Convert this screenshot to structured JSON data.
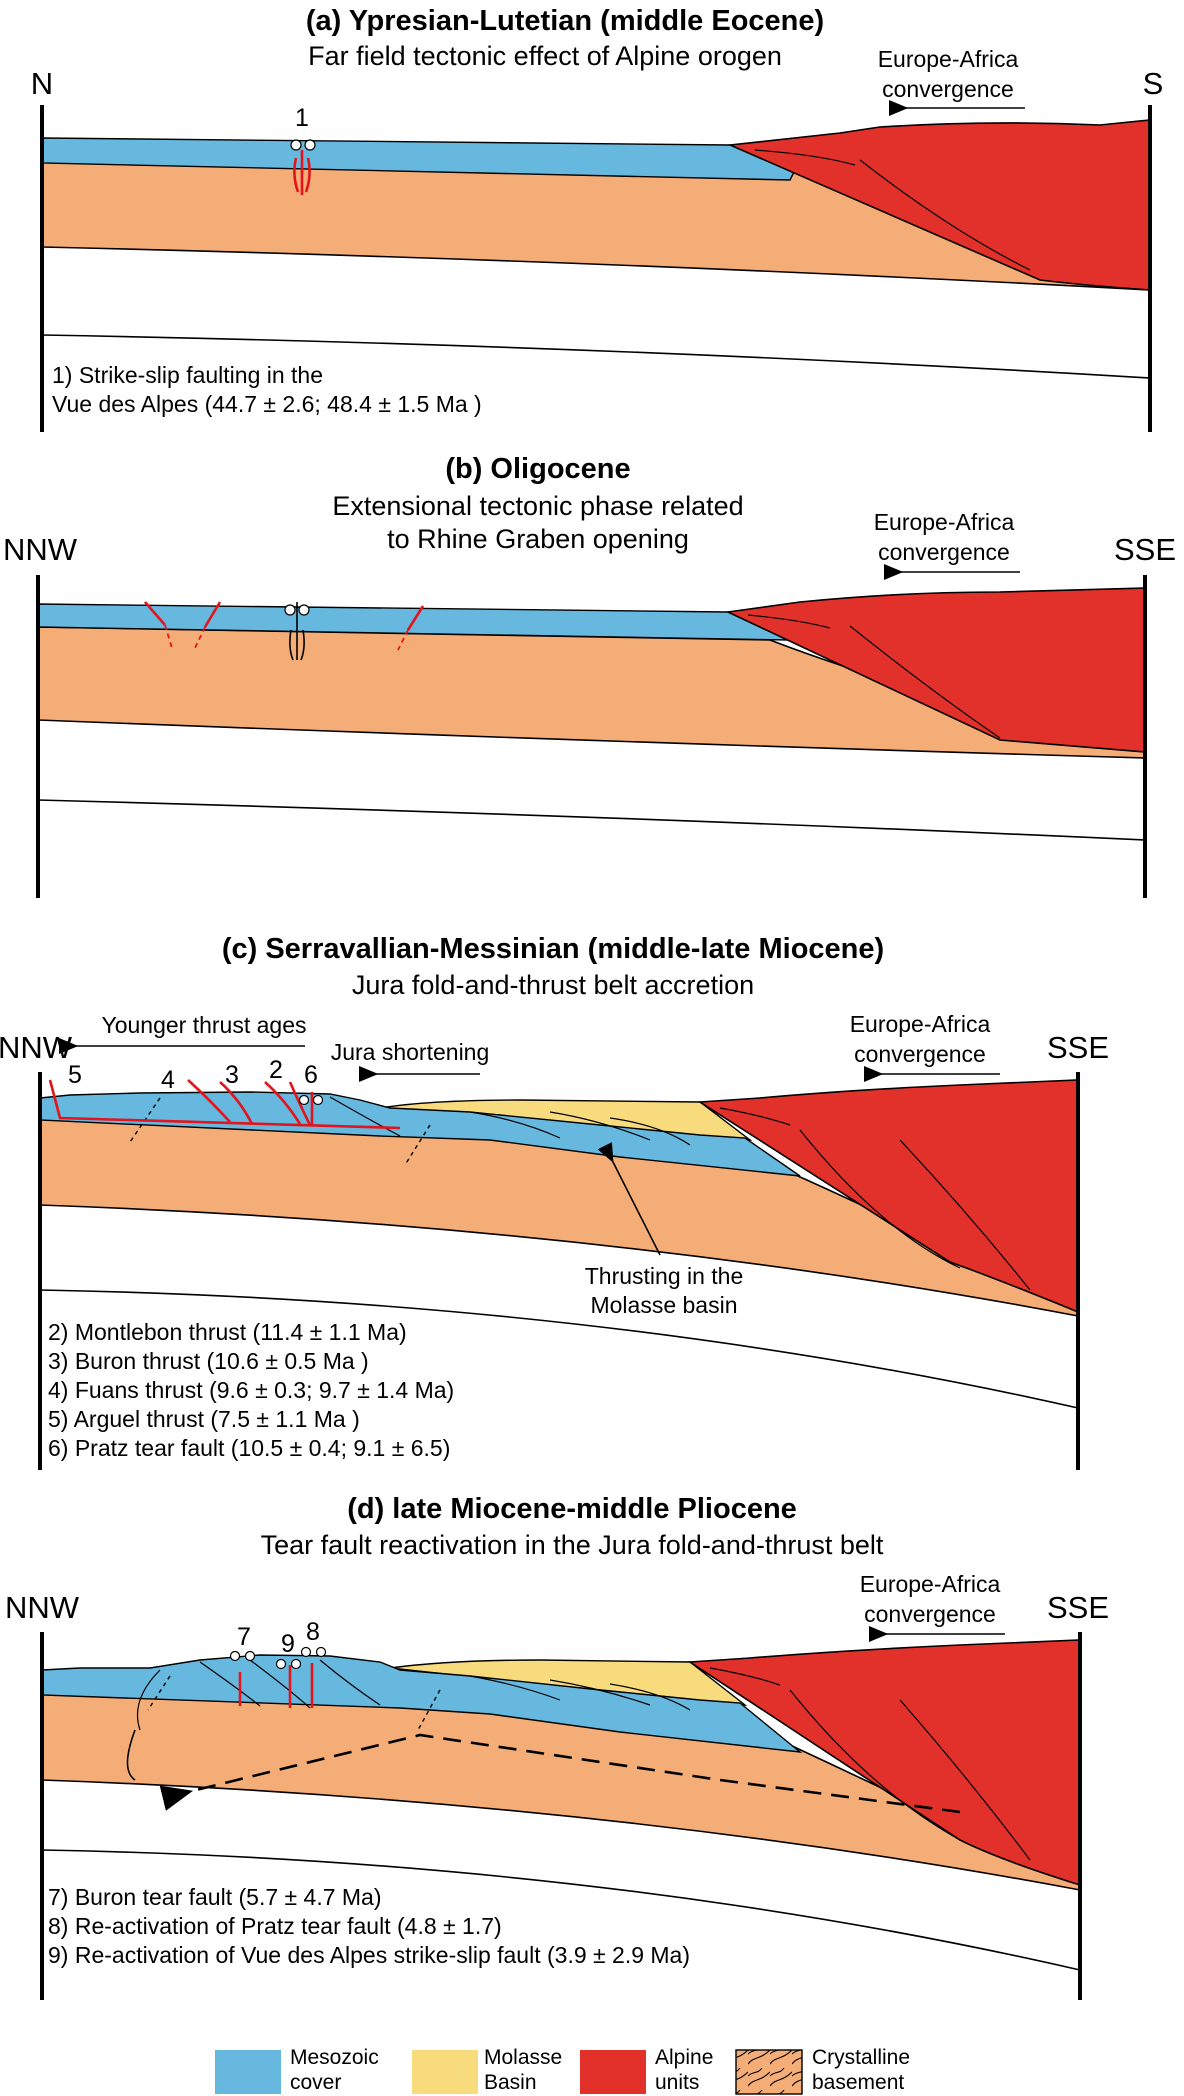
{
  "panels": [
    {
      "title": "(a) Ypresian-Lutetian (middle Eocene)",
      "subtitle": "Far field tectonic effect of Alpine orogen",
      "left": "N",
      "right": "S",
      "convergence": [
        "Europe-Africa",
        "convergence"
      ],
      "markers": [
        "1"
      ],
      "notes": [
        "1) Strike-slip faulting in the",
        "Vue des Alpes (44.7 ± 2.6; 48.4 ± 1.5 Ma )"
      ]
    },
    {
      "title": "(b) Oligocene",
      "subtitle": [
        "Extensional tectonic phase related",
        "to Rhine Graben opening"
      ],
      "left": "NNW",
      "right": "SSE",
      "convergence": [
        "Europe-Africa",
        "convergence"
      ]
    },
    {
      "title": "(c) Serravallian-Messinian (middle-late Miocene)",
      "subtitle": "Jura fold-and-thrust belt accretion",
      "left": "NNW",
      "right": "SSE",
      "convergence": [
        "Europe-Africa",
        "convergence"
      ],
      "younger": "Younger thrust ages",
      "shortening": "Jura shortening",
      "molasse_thrust": [
        "Thrusting in the",
        "Molasse basin"
      ],
      "markers": [
        "5",
        "4",
        "3",
        "2",
        "6"
      ],
      "notes": [
        "2) Montlebon thrust (11.4 ± 1.1 Ma)",
        "3) Buron thrust (10.6 ± 0.5 Ma )",
        "4) Fuans thrust (9.6 ± 0.3; 9.7 ± 1.4 Ma)",
        "5) Arguel thrust (7.5 ± 1.1 Ma )",
        "6) Pratz tear fault (10.5 ± 0.4; 9.1 ± 6.5)"
      ]
    },
    {
      "title": "(d) late Miocene-middle Pliocene",
      "subtitle": "Tear fault reactivation in the Jura fold-and-thrust belt",
      "left": "NNW",
      "right": "SSE",
      "convergence": [
        "Europe-Africa",
        "convergence"
      ],
      "markers": [
        "7",
        "9",
        "8"
      ],
      "notes": [
        "7) Buron tear fault (5.7 ± 4.7 Ma)",
        "8) Re-activation of Pratz tear fault (4.8 ± 1.7)",
        "9) Re-activation of Vue des Alpes strike-slip fault (3.9 ± 2.9 Ma)"
      ]
    }
  ],
  "legend": [
    {
      "label": [
        "Mesozoic",
        "cover"
      ],
      "color": "#66b8df"
    },
    {
      "label": [
        "Molasse",
        "Basin"
      ],
      "color": "#f8db7c"
    },
    {
      "label": [
        "Alpine",
        "units"
      ],
      "color": "#e2312b"
    },
    {
      "label": [
        "Crystalline",
        "basement"
      ],
      "color": "#f5ad78"
    }
  ]
}
